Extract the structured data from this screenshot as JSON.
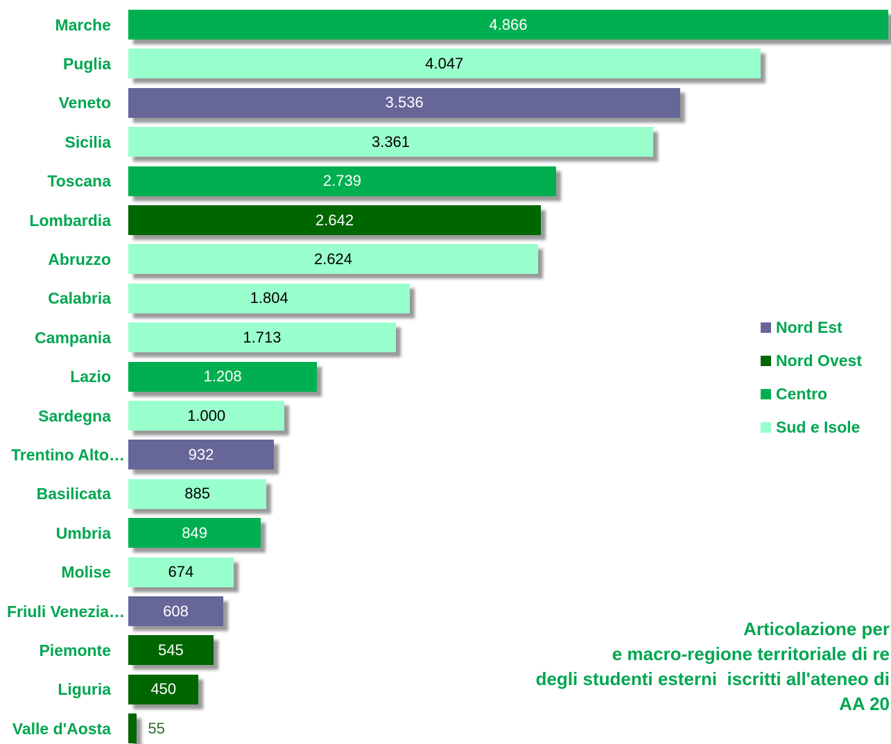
{
  "chart_data": {
    "type": "bar",
    "orientation": "horizontal",
    "categories": [
      "Marche",
      "Puglia",
      "Veneto",
      "Sicilia",
      "Toscana",
      "Lombardia",
      "Abruzzo",
      "Calabria",
      "Campania",
      "Lazio",
      "Sardegna",
      "Trentino Alto…",
      "Basilicata",
      "Umbria",
      "Molise",
      "Friuli Venezia…",
      "Piemonte",
      "Liguria",
      "Valle d'Aosta"
    ],
    "series": [
      {
        "name": "Nord Est",
        "color": "#666699",
        "label_color": "#FFFFFF",
        "values": [
          null,
          null,
          3536,
          null,
          null,
          null,
          null,
          null,
          null,
          null,
          null,
          932,
          null,
          null,
          null,
          608,
          null,
          null,
          null
        ]
      },
      {
        "name": "Nord Ovest",
        "color": "#006600",
        "label_color": "#FFFFFF",
        "values": [
          null,
          null,
          null,
          null,
          null,
          2642,
          null,
          null,
          null,
          null,
          null,
          null,
          null,
          null,
          null,
          null,
          545,
          450,
          55
        ]
      },
      {
        "name": "Centro",
        "color": "#00B050",
        "label_color": "#FFFFFF",
        "values": [
          4866,
          null,
          null,
          null,
          2739,
          null,
          null,
          null,
          null,
          1208,
          null,
          null,
          null,
          849,
          null,
          null,
          null,
          null,
          null
        ]
      },
      {
        "name": "Sud e Isole",
        "color": "#99FFCC",
        "label_color": "#000000",
        "values": [
          null,
          4047,
          null,
          3361,
          null,
          null,
          2624,
          1804,
          1713,
          null,
          1000,
          null,
          885,
          null,
          674,
          null,
          null,
          null,
          null
        ]
      }
    ],
    "value_labels": [
      "4.866",
      "4.047",
      "3.536",
      "3.361",
      "2.739",
      "2.642",
      "2.624",
      "1.804",
      "1.713",
      "1.208",
      "1.000",
      "932",
      "885",
      "849",
      "674",
      "608",
      "545",
      "450",
      "55"
    ],
    "title_lines": [
      "Articolazione per",
      "e macro-regione territoriale di re",
      "degli studenti esterni  iscritti all'ateneo di",
      "AA 20"
    ],
    "legend_position": "right",
    "grid": false,
    "category_label_color": "#00A650",
    "title_color": "#00A650",
    "legend_text_color": "#00A650",
    "outside_label_color": "#2F6B2F"
  }
}
